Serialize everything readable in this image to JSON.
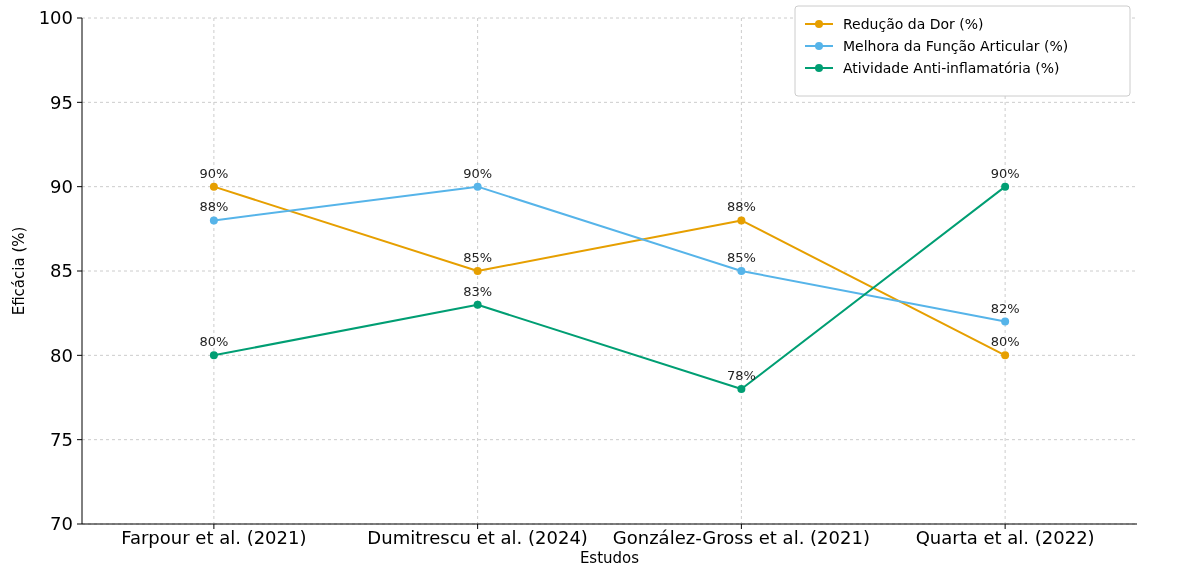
{
  "chart_data": {
    "type": "line",
    "xlabel": "Estudos",
    "ylabel": "Eficácia (%)",
    "categories": [
      "Farpour et al. (2021)",
      "Dumitrescu et al. (2024)",
      "González-Gross et al. (2021)",
      "Quarta et al. (2022)"
    ],
    "series": [
      {
        "name": "Redução da Dor (%)",
        "color": "#e69f00",
        "values": [
          90,
          85,
          88,
          80
        ],
        "value_labels": [
          "90%",
          "85%",
          "88%",
          "80%"
        ]
      },
      {
        "name": "Melhora da Função Articular (%)",
        "color": "#56b4e9",
        "values": [
          88,
          90,
          85,
          82
        ],
        "value_labels": [
          "88%",
          "90%",
          "85%",
          "82%"
        ]
      },
      {
        "name": "Atividade Anti-inflamatória (%)",
        "color": "#009e73",
        "values": [
          80,
          83,
          78,
          90
        ],
        "value_labels": [
          "80%",
          "83%",
          "78%",
          "90%"
        ]
      }
    ],
    "ylim": [
      70,
      100
    ],
    "yticks": [
      70,
      75,
      80,
      85,
      90,
      95,
      100
    ],
    "grid": true,
    "legend": "top right",
    "marker": "circle",
    "line_style": "solid"
  }
}
